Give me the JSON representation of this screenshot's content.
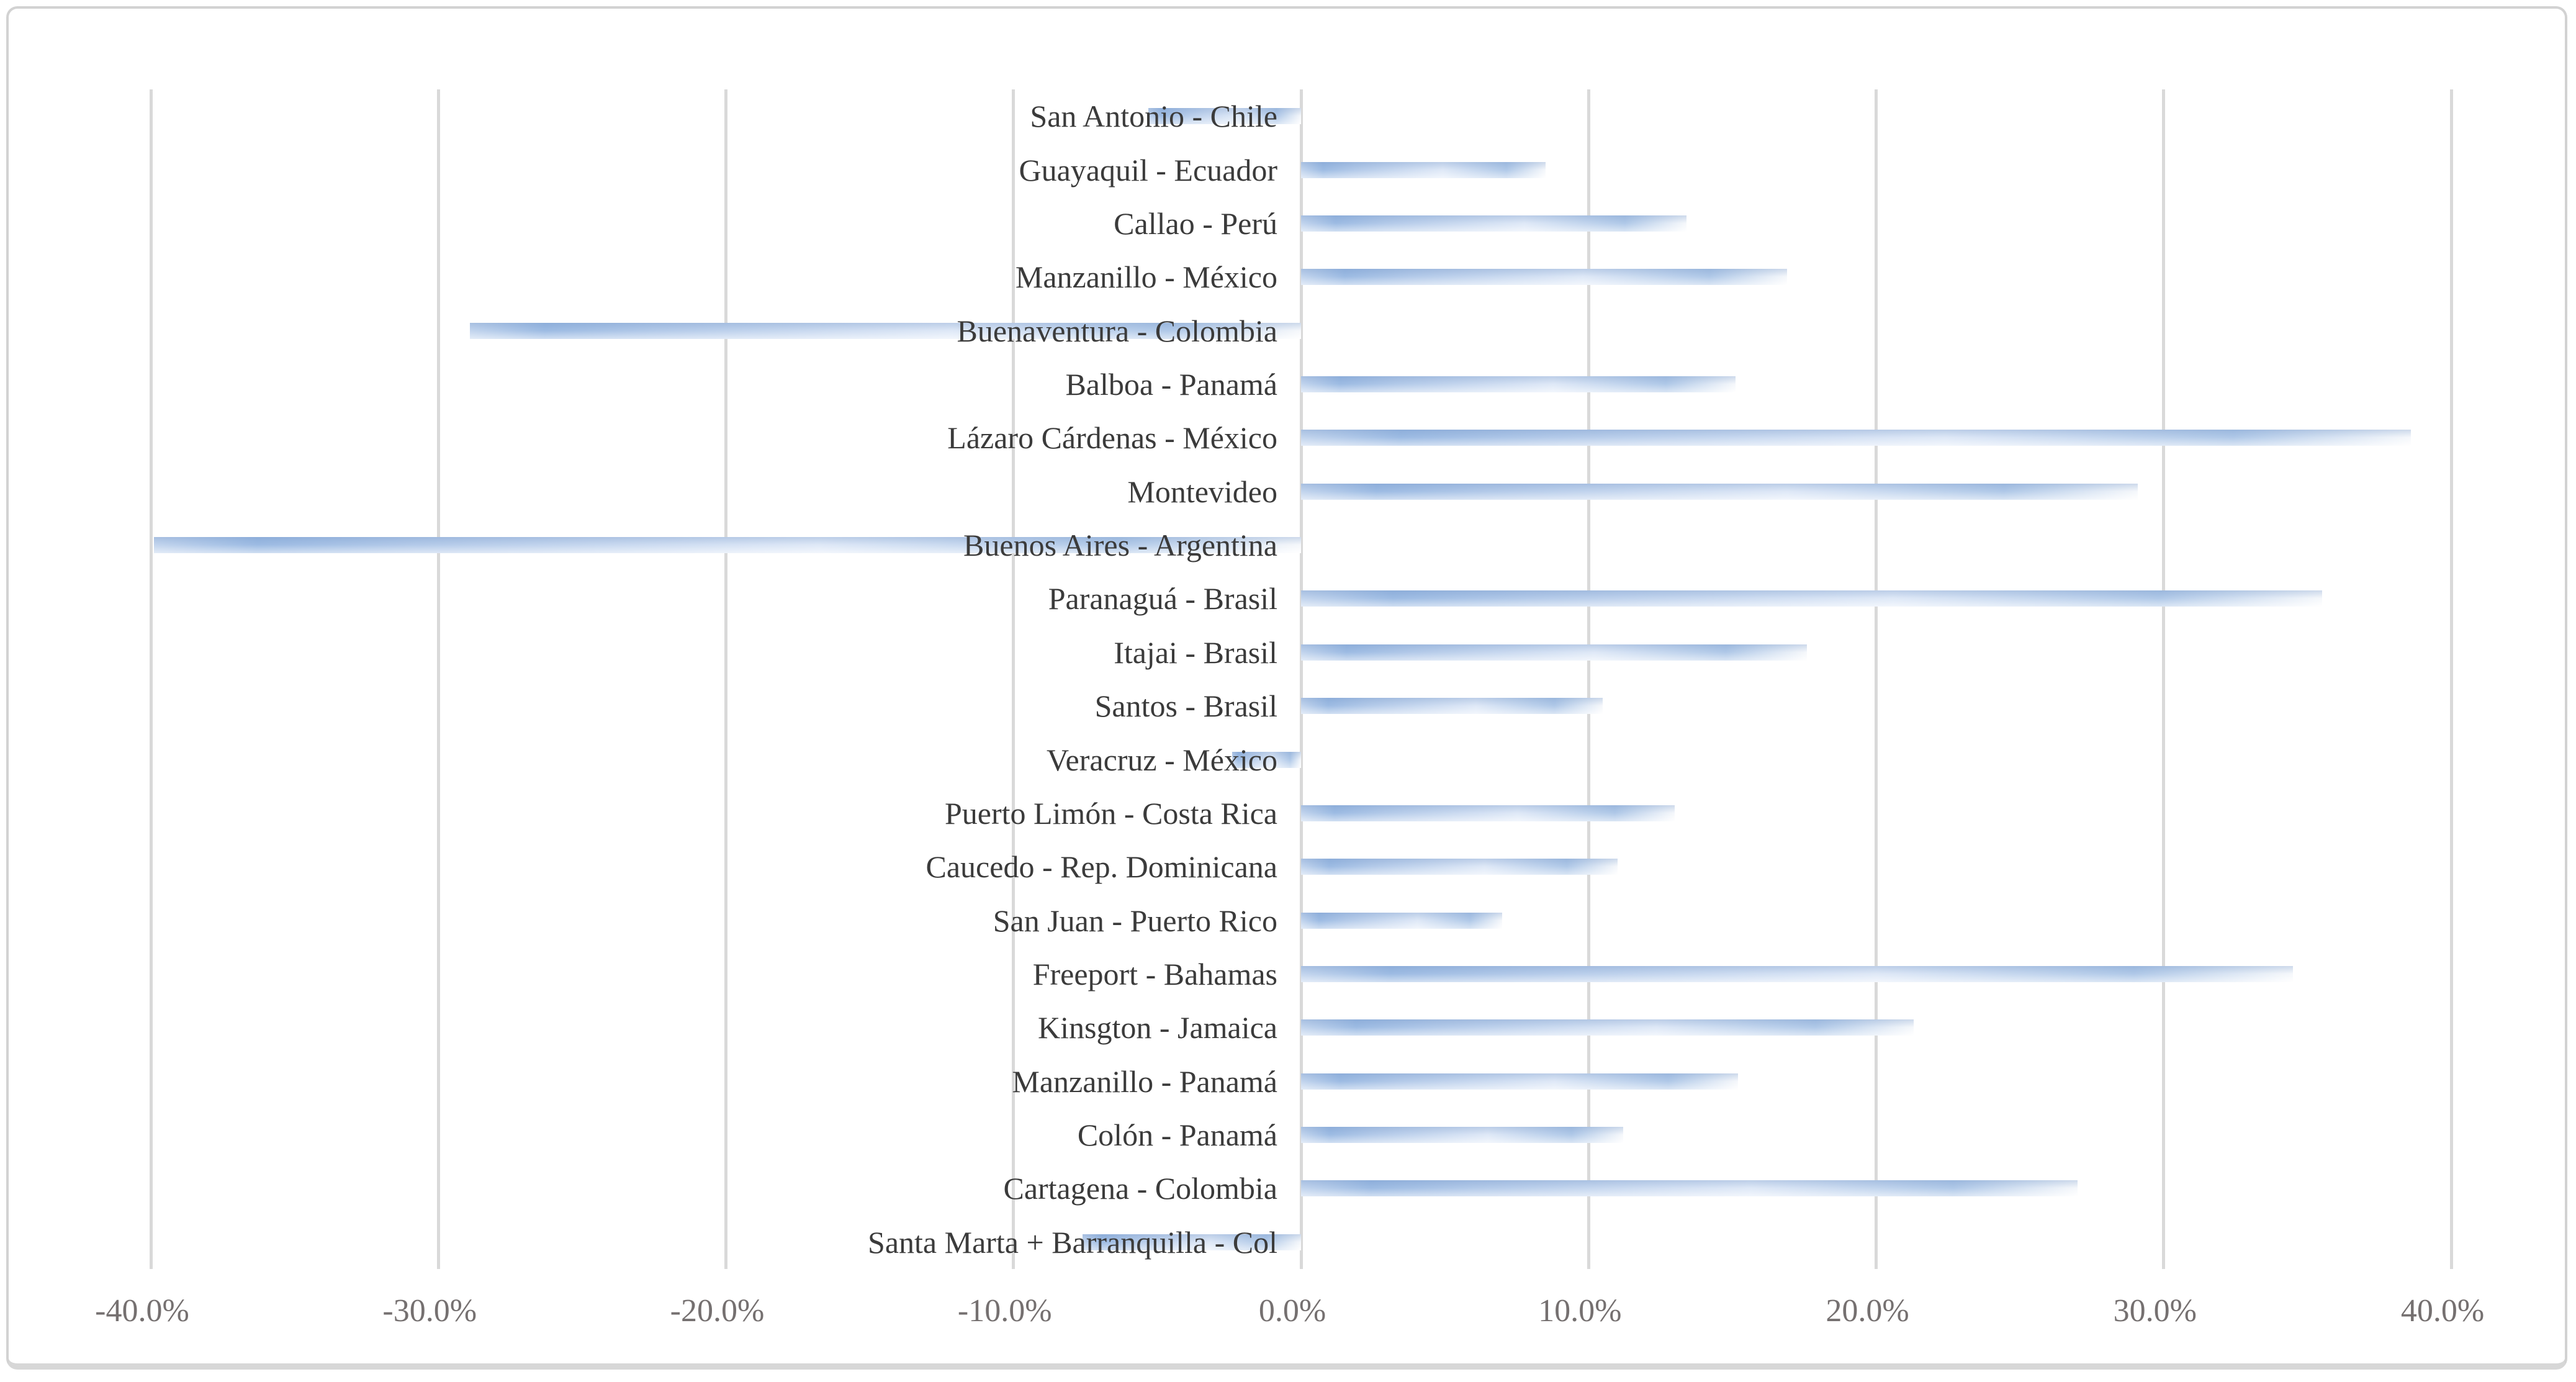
{
  "chart_data": {
    "type": "bar",
    "orientation": "horizontal",
    "title": "",
    "xlabel": "",
    "ylabel": "",
    "categories": [
      "San Antonio - Chile",
      "Guayaquil - Ecuador",
      "Callao - Perú",
      "Manzanillo - México",
      "Buenaventura - Colombia",
      "Balboa - Panamá",
      "Lázaro Cárdenas - México",
      "Montevideo",
      "Buenos Aires - Argentina",
      "Paranaguá - Brasil",
      "Itajai - Brasil",
      "Santos - Brasil",
      "Veracruz - México",
      "Puerto Limón - Costa Rica",
      "Caucedo - Rep. Dominicana",
      "San Juan - Puerto Rico",
      "Freeport - Bahamas",
      "Kinsgton - Jamaica",
      "Manzanillo - Panamá",
      "Colón - Panamá",
      "Cartagena - Colombia",
      "Santa Marta + Barranquilla - Col"
    ],
    "values": [
      -5.3,
      8.5,
      13.4,
      16.9,
      -28.9,
      15.1,
      38.6,
      29.1,
      -39.9,
      35.5,
      17.6,
      10.5,
      -2.4,
      13.0,
      11.0,
      7.0,
      34.5,
      21.3,
      15.2,
      11.2,
      27.0,
      -7.6
    ],
    "value_unit": "%",
    "xlim": [
      -40,
      40
    ],
    "x_tick_labels": [
      "-40.0%",
      "-30.0%",
      "-20.0%",
      "-10.0%",
      "0.0%",
      "10.0%",
      "20.0%",
      "30.0%",
      "40.0%"
    ],
    "grid": "vertical-on",
    "legend": "none",
    "colors": {
      "bar_main": "#a0bee5",
      "bar_light": "#e6eefa",
      "gridline": "#d9d9d9",
      "category_text": "#3b3b3b",
      "tick_text": "#757070",
      "frame_border": "#d2d2d2",
      "background": "#ffffff"
    }
  }
}
